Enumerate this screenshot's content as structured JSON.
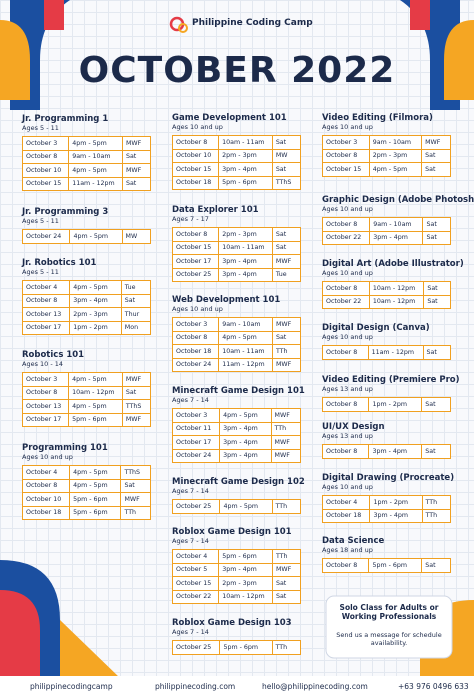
{
  "header": {
    "brand": "Philippine Coding Camp",
    "title": "OCTOBER 2022"
  },
  "columns": [
    {
      "courses": [
        {
          "title": "Jr. Programming 1",
          "ages": "Ages 5 - 11",
          "rows": [
            [
              "October 3",
              "4pm - 5pm",
              "MWF"
            ],
            [
              "October 8",
              "9am - 10am",
              "Sat"
            ],
            [
              "October 10",
              "4pm - 5pm",
              "MWF"
            ],
            [
              "October 15",
              "11am - 12pm",
              "Sat"
            ]
          ]
        },
        {
          "title": "Jr. Programming 3",
          "ages": "Ages 5 - 11",
          "rows": [
            [
              "October 24",
              "4pm - 5pm",
              "MW"
            ]
          ]
        },
        {
          "title": "Jr. Robotics 101",
          "ages": "Ages 5 - 11",
          "rows": [
            [
              "October 4",
              "4pm - 5pm",
              "Tue"
            ],
            [
              "October 8",
              "3pm - 4pm",
              "Sat"
            ],
            [
              "October 13",
              "2pm - 3pm",
              "Thur"
            ],
            [
              "October 17",
              "1pm - 2pm",
              "Mon"
            ]
          ]
        },
        {
          "title": "Robotics 101",
          "ages": "Ages 10 - 14",
          "rows": [
            [
              "October 3",
              "4pm - 5pm",
              "MWF"
            ],
            [
              "October 8",
              "10am - 12pm",
              "Sat"
            ],
            [
              "October 13",
              "4pm - 5pm",
              "TThS"
            ],
            [
              "October 17",
              "5pm - 6pm",
              "MWF"
            ]
          ]
        },
        {
          "title": "Programming 101",
          "ages": "Ages 10 and up",
          "rows": [
            [
              "October 4",
              "4pm - 5pm",
              "TThS"
            ],
            [
              "October 8",
              "4pm - 5pm",
              "Sat"
            ],
            [
              "October 10",
              "5pm - 6pm",
              "MWF"
            ],
            [
              "October 18",
              "5pm - 6pm",
              "TTh"
            ]
          ]
        }
      ]
    },
    {
      "courses": [
        {
          "title": "Game Development 101",
          "ages": "Ages 10 and up",
          "rows": [
            [
              "October 8",
              "10am - 11am",
              "Sat"
            ],
            [
              "October 10",
              "2pm - 3pm",
              "MW"
            ],
            [
              "October 15",
              "3pm - 4pm",
              "Sat"
            ],
            [
              "October 18",
              "5pm - 6pm",
              "TThS"
            ]
          ]
        },
        {
          "title": "Data Explorer 101",
          "ages": "Ages 7 - 17",
          "rows": [
            [
              "October 8",
              "2pm - 3pm",
              "Sat"
            ],
            [
              "October 15",
              "10am - 11am",
              "Sat"
            ],
            [
              "October 17",
              "3pm - 4pm",
              "MWF"
            ],
            [
              "October 25",
              "3pm - 4pm",
              "Tue"
            ]
          ]
        },
        {
          "title": "Web Development 101",
          "ages": "Ages 10 and up",
          "rows": [
            [
              "October 3",
              "9am - 10am",
              "MWF"
            ],
            [
              "October 8",
              "4pm - 5pm",
              "Sat"
            ],
            [
              "October 18",
              "10am - 11am",
              "TTh"
            ],
            [
              "October 24",
              "11am - 12pm",
              "MWF"
            ]
          ]
        },
        {
          "title": "Minecraft Game Design 101",
          "ages": "Ages 7 - 14",
          "rows": [
            [
              "October 3",
              "4pm - 5pm",
              "MWF"
            ],
            [
              "October 11",
              "3pm - 4pm",
              "TTh"
            ],
            [
              "October 17",
              "3pm - 4pm",
              "MWF"
            ],
            [
              "October 24",
              "3pm - 4pm",
              "MWF"
            ]
          ]
        },
        {
          "title": "Minecraft Game Design 102",
          "ages": "Ages 7 - 14",
          "rows": [
            [
              "October 25",
              "4pm - 5pm",
              "TTh"
            ]
          ]
        },
        {
          "title": "Roblox Game Design 101",
          "ages": "Ages 7 - 14",
          "rows": [
            [
              "October 4",
              "5pm - 6pm",
              "TTh"
            ],
            [
              "October 5",
              "3pm - 4pm",
              "MWF"
            ],
            [
              "October 15",
              "2pm - 3pm",
              "Sat"
            ],
            [
              "October 22",
              "10am - 12pm",
              "Sat"
            ]
          ]
        },
        {
          "title": "Roblox Game Design 103",
          "ages": "Ages 7 - 14",
          "rows": [
            [
              "October 25",
              "5pm - 6pm",
              "TTh"
            ]
          ]
        }
      ]
    },
    {
      "courses": [
        {
          "title": "Video Editing (Filmora)",
          "ages": "Ages 10 and up",
          "rows": [
            [
              "October 3",
              "9am - 10am",
              "MWF"
            ],
            [
              "October 8",
              "2pm - 3pm",
              "Sat"
            ],
            [
              "October 15",
              "4pm - 5pm",
              "Sat"
            ]
          ]
        },
        {
          "title": "Graphic Design (Adobe Photoshop)",
          "ages": "Ages 10 and up",
          "rows": [
            [
              "October 8",
              "9am - 10am",
              "Sat"
            ],
            [
              "October 22",
              "3pm - 4pm",
              "Sat"
            ]
          ]
        },
        {
          "title": "Digital Art (Adobe Illustrator)",
          "ages": "Ages 10 and up",
          "rows": [
            [
              "October 8",
              "10am - 12pm",
              "Sat"
            ],
            [
              "October 22",
              "10am - 12pm",
              "Sat"
            ]
          ]
        },
        {
          "title": "Digital Design (Canva)",
          "ages": "Ages 10 and up",
          "rows": [
            [
              "October 8",
              "11am - 12pm",
              "Sat"
            ]
          ]
        },
        {
          "title": "Video Editing (Premiere Pro)",
          "ages": "Ages 13 and up",
          "rows": [
            [
              "October 8",
              "1pm - 2pm",
              "Sat"
            ]
          ]
        },
        {
          "title": "UI/UX Design",
          "ages": "Ages 13 and up",
          "rows": [
            [
              "October 8",
              "3pm - 4pm",
              "Sat"
            ]
          ]
        },
        {
          "title": "Digital Drawing (Procreate)",
          "ages": "Ages 10 and up",
          "rows": [
            [
              "October 4",
              "1pm - 2pm",
              "TTh"
            ],
            [
              "October 18",
              "3pm - 4pm",
              "TTh"
            ]
          ]
        },
        {
          "title": "Data Science",
          "ages": "Ages 18 and up",
          "rows": [
            [
              "October 8",
              "5pm - 6pm",
              "Sat"
            ]
          ]
        }
      ]
    }
  ],
  "promo": {
    "title": "Solo Class for Adults or Working Professionals",
    "text": "Send us a message for schedule availability."
  },
  "footer": {
    "social": "philippinecodingcamp",
    "website": "philippinecoding.com",
    "email": "hello@philippinecoding.com",
    "phone": "+63 976 0496 633"
  }
}
